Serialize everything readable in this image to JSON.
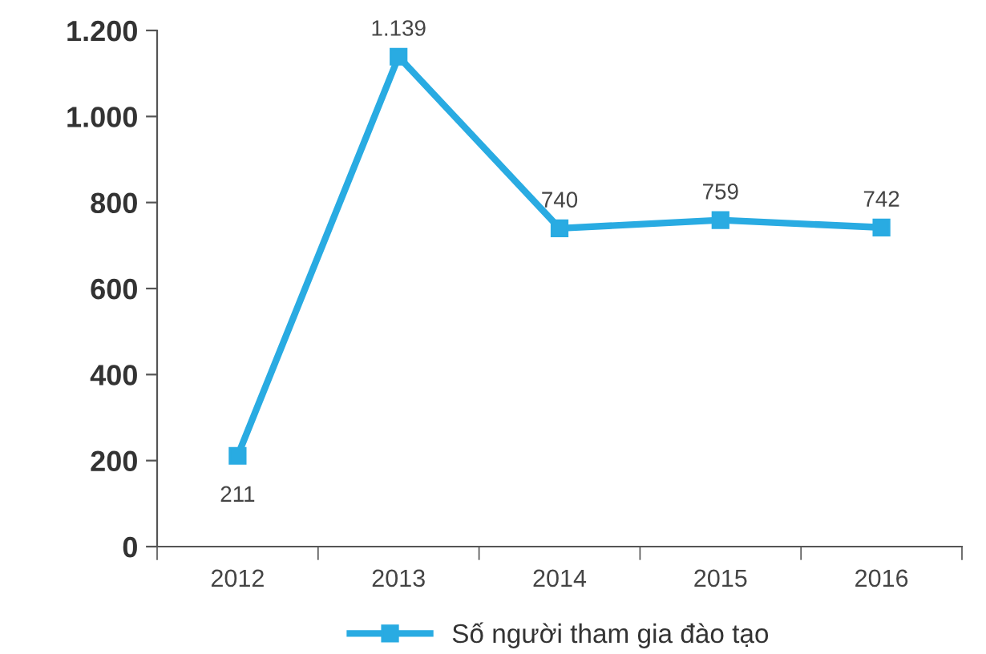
{
  "chart_data": {
    "type": "line",
    "categories": [
      "2012",
      "2013",
      "2014",
      "2015",
      "2016"
    ],
    "series": [
      {
        "name": "Số người tham gia đào tạo",
        "color": "#29abe2",
        "values": [
          211,
          1139,
          740,
          759,
          742
        ],
        "value_labels": [
          "211",
          "1.139",
          "740",
          "759",
          "742"
        ]
      }
    ],
    "ylim": [
      0,
      1200
    ],
    "yticks": [
      0,
      200,
      400,
      600,
      800,
      {
        "value": 1000,
        "label": "1.000"
      },
      {
        "value": 1200,
        "label": "1.200"
      }
    ],
    "marker": "square",
    "line_style": "solid",
    "grid": false,
    "legend": "bottom"
  }
}
